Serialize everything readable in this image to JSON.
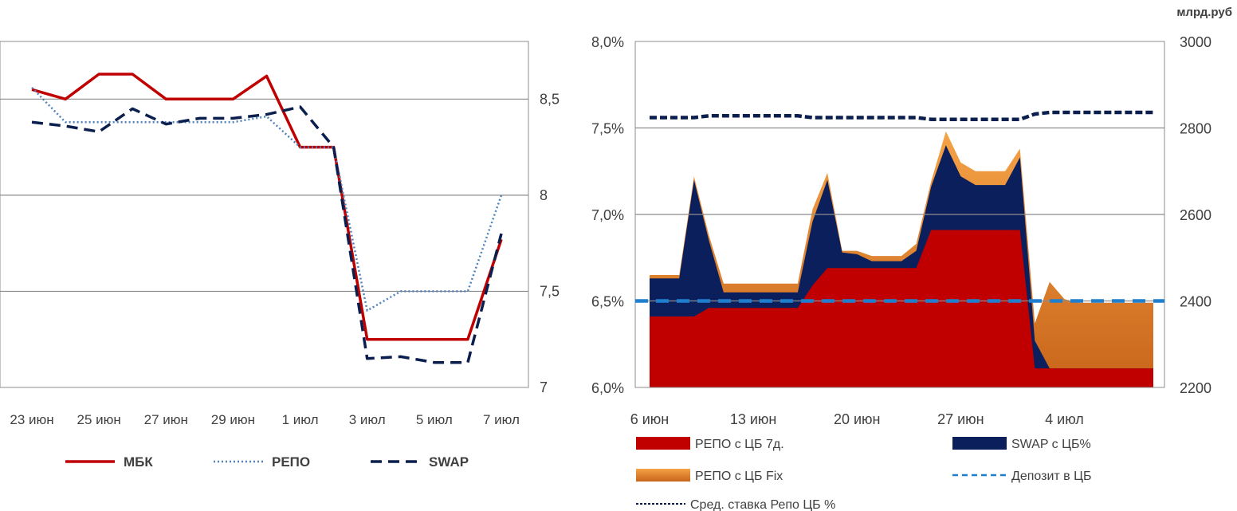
{
  "chart_data": [
    {
      "type": "line",
      "title": "",
      "categories": [
        "23 июн",
        "24 июн",
        "25 июн",
        "26 июн",
        "27 июн",
        "28 июн",
        "29 июн",
        "30 июн",
        "1 июл",
        "2 июл",
        "3 июл",
        "4 июл",
        "5 июл",
        "6 июл",
        "7 июл"
      ],
      "x_tick_labels": [
        "23 июн",
        "25 июн",
        "27 июн",
        "29 июн",
        "1 июл",
        "3 июл",
        "5 июл",
        "7 июл"
      ],
      "y_tick_labels": [
        "7",
        "7,5",
        "8",
        "8,5"
      ],
      "ylim": [
        7,
        8.8
      ],
      "y_axis_side": "right",
      "grid": true,
      "legend_position": "bottom",
      "series": [
        {
          "name": "МБК",
          "style": "solid",
          "color": "#c00000",
          "values": [
            8.55,
            8.5,
            8.63,
            8.63,
            8.5,
            8.5,
            8.5,
            8.62,
            8.25,
            8.25,
            7.25,
            7.25,
            7.25,
            7.25,
            7.77
          ]
        },
        {
          "name": "РЕПО",
          "style": "dotted",
          "color": "#4f81bd",
          "values": [
            8.56,
            8.38,
            8.38,
            8.38,
            8.38,
            8.38,
            8.38,
            8.41,
            8.25,
            8.25,
            7.4,
            7.5,
            7.5,
            7.5,
            8.0
          ]
        },
        {
          "name": "SWAP",
          "style": "dashed",
          "color": "#0b1f4e",
          "values": [
            8.38,
            8.36,
            8.33,
            8.45,
            8.37,
            8.4,
            8.4,
            8.42,
            8.46,
            8.25,
            7.15,
            7.16,
            7.13,
            7.13,
            7.8
          ]
        }
      ]
    },
    {
      "type": "area",
      "title": "",
      "unit_label": "млрд.руб",
      "x_tick_labels": [
        "6 июн",
        "13 июн",
        "20 июн",
        "27 июн",
        "4 июл"
      ],
      "x_range": [
        "6 июн",
        "10 июл"
      ],
      "y_left_tick_labels": [
        "6,0%",
        "6,5%",
        "7,0%",
        "7,5%",
        "8,0%"
      ],
      "y_left_range": [
        6.0,
        8.0
      ],
      "y_right_tick_labels": [
        "2200",
        "2400",
        "2600",
        "2800",
        "3000"
      ],
      "y_right_range": [
        2200,
        3000
      ],
      "grid": true,
      "legend_position": "bottom",
      "legend": [
        {
          "name": "РЕПО с ЦБ 7д.",
          "color": "#c00000"
        },
        {
          "name": "SWAP с ЦБ%",
          "color": "#0b1f5c"
        },
        {
          "name": "РЕПО с ЦБ Fix",
          "color": "#e98a2e"
        },
        {
          "name": "Депозит в ЦБ",
          "color": "#1f7fcf"
        },
        {
          "name": "Сред. ставка Репо ЦБ %",
          "color": "#0b1f4e"
        }
      ],
      "days": [
        "6 июн",
        "7 июн",
        "8 июн",
        "9 июн",
        "10 июн",
        "11 июн",
        "12 июн",
        "13 июн",
        "14 июн",
        "15 июн",
        "16 июн",
        "17 июн",
        "18 июн",
        "19 июн",
        "20 июн",
        "21 июн",
        "22 июн",
        "23 июн",
        "24 июн",
        "25 июн",
        "26 июн",
        "27 июн",
        "28 июн",
        "29 июн",
        "30 июн",
        "1 июл",
        "2 июл",
        "3 июл",
        "4 июл",
        "5 июл",
        "6 июл",
        "7 июл",
        "8 июл",
        "9 июл",
        "10 июл"
      ],
      "series": [
        {
          "name": "РЕПО с ЦБ 7д.",
          "axis": "left",
          "stack": true,
          "values": [
            6.41,
            6.41,
            6.41,
            6.41,
            6.46,
            6.46,
            6.46,
            6.46,
            6.46,
            6.46,
            6.46,
            6.59,
            6.69,
            6.69,
            6.69,
            6.69,
            6.69,
            6.69,
            6.69,
            6.91,
            6.91,
            6.91,
            6.91,
            6.91,
            6.91,
            6.91,
            6.11,
            6.11,
            6.11,
            6.11,
            6.11,
            6.11,
            6.11,
            6.11,
            6.11
          ]
        },
        {
          "name": "SWAP с ЦБ%",
          "axis": "left",
          "stack": true,
          "values": [
            0.22,
            0.22,
            0.22,
            0.79,
            0.39,
            0.09,
            0.09,
            0.09,
            0.09,
            0.09,
            0.09,
            0.37,
            0.51,
            0.09,
            0.08,
            0.04,
            0.04,
            0.04,
            0.1,
            0.25,
            0.49,
            0.31,
            0.26,
            0.26,
            0.26,
            0.42,
            0.16,
            0.0,
            0.0,
            0.0,
            0.0,
            0.0,
            0.0,
            0.0,
            0.0
          ]
        },
        {
          "name": "РЕПО с ЦБ Fix",
          "axis": "left",
          "stack": true,
          "values": [
            0.02,
            0.02,
            0.02,
            0.02,
            0.03,
            0.05,
            0.05,
            0.05,
            0.05,
            0.05,
            0.05,
            0.07,
            0.04,
            0.01,
            0.02,
            0.03,
            0.03,
            0.03,
            0.04,
            0.03,
            0.08,
            0.08,
            0.08,
            0.08,
            0.08,
            0.05,
            0.1,
            0.5,
            0.4,
            0.38,
            0.38,
            0.38,
            0.38,
            0.38,
            0.38
          ]
        },
        {
          "name": "Депозит в ЦБ",
          "axis": "left",
          "style": "dashed",
          "values": [
            6.5,
            6.5,
            6.5,
            6.5,
            6.5,
            6.5,
            6.5,
            6.5,
            6.5,
            6.5,
            6.5,
            6.5,
            6.5,
            6.5,
            6.5,
            6.5,
            6.5,
            6.5,
            6.5,
            6.5,
            6.5,
            6.5,
            6.5,
            6.5,
            6.5,
            6.5,
            6.5,
            6.5,
            6.5,
            6.5,
            6.5,
            6.5,
            6.5,
            6.5,
            6.5
          ]
        },
        {
          "name": "Сред. ставка Репо ЦБ %",
          "axis": "left",
          "style": "dashed",
          "values": [
            7.56,
            7.56,
            7.56,
            7.56,
            7.57,
            7.57,
            7.57,
            7.57,
            7.57,
            7.57,
            7.57,
            7.56,
            7.56,
            7.56,
            7.56,
            7.56,
            7.56,
            7.56,
            7.56,
            7.55,
            7.55,
            7.55,
            7.55,
            7.55,
            7.55,
            7.55,
            7.58,
            7.59,
            7.59,
            7.59,
            7.59,
            7.59,
            7.59,
            7.59,
            7.59
          ]
        }
      ]
    }
  ]
}
